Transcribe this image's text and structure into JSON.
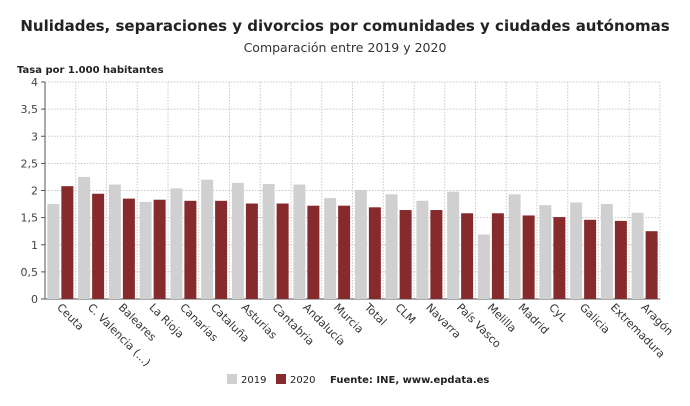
{
  "chart_data": {
    "type": "bar",
    "title": "Nulidades, separaciones y divorcios por comunidades y ciudades autónomas",
    "subtitle": "Comparación entre 2019 y 2020",
    "ylabel": "Tasa por 1.000 habitantes",
    "xlabel": "",
    "ylim": [
      0,
      4
    ],
    "yticks": [
      "0",
      "0,5",
      "1",
      "1,5",
      "2",
      "2,5",
      "3",
      "3,5",
      "4"
    ],
    "grid": true,
    "legend_position": "bottom",
    "categories": [
      "Ceuta",
      "C. Valencia (...)",
      "Baleares",
      "La Rioja",
      "Canarias",
      "Cataluña",
      "Asturias",
      "Cantabria",
      "Andalucía",
      "Murcia",
      "Total",
      "CLM",
      "Navarra",
      "País Vasco",
      "Melilla",
      "Madrid",
      "CyL",
      "Galicia",
      "Extremadura",
      "Aragón"
    ],
    "series": [
      {
        "name": "2019",
        "color": "#d0d0d0",
        "values": [
          1.75,
          2.25,
          2.11,
          1.79,
          2.04,
          2.2,
          2.14,
          2.12,
          2.11,
          1.86,
          2.01,
          1.93,
          1.81,
          1.98,
          1.19,
          1.93,
          1.73,
          1.78,
          1.75,
          1.59
        ]
      },
      {
        "name": "2020",
        "color": "#862a2c",
        "values": [
          2.08,
          1.94,
          1.85,
          1.83,
          1.81,
          1.81,
          1.76,
          1.76,
          1.72,
          1.72,
          1.69,
          1.64,
          1.64,
          1.58,
          1.58,
          1.54,
          1.51,
          1.46,
          1.44,
          1.25
        ]
      }
    ],
    "source": "Fuente: INE, www.epdata.es"
  }
}
